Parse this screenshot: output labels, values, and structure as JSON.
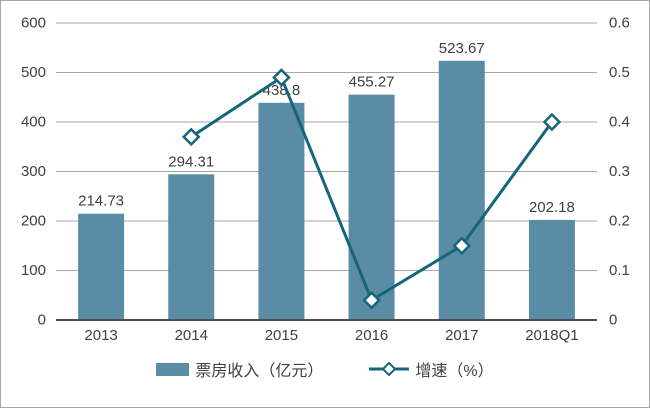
{
  "chart_data": {
    "type": "bar+line",
    "title": "",
    "categories": [
      "2013",
      "2014",
      "2015",
      "2016",
      "2017",
      "2018Q1"
    ],
    "series": [
      {
        "name": "票房收入（亿元）",
        "type": "bar",
        "axis": "left",
        "values": [
          214.73,
          294.31,
          438.8,
          455.27,
          523.67,
          202.18
        ],
        "data_labels": [
          "214.73",
          "294.31",
          "438.8",
          "455.27",
          "523.67",
          "202.18"
        ]
      },
      {
        "name": "增速（%）",
        "type": "line",
        "axis": "right",
        "marker": "diamond",
        "values": [
          null,
          0.37,
          0.49,
          0.04,
          0.15,
          0.4
        ]
      }
    ],
    "left_axis": {
      "min": 0,
      "max": 600,
      "step": 100,
      "tick_labels": [
        "0",
        "100",
        "200",
        "300",
        "400",
        "500",
        "600"
      ]
    },
    "right_axis": {
      "min": 0,
      "max": 0.6,
      "step": 0.1,
      "tick_labels": [
        "0",
        "0.1",
        "0.2",
        "0.3",
        "0.4",
        "0.5",
        "0.6"
      ]
    },
    "grid": true,
    "legend_position": "bottom",
    "colors": {
      "bar": "#5b8ca6",
      "line": "#156679",
      "marker_fill": "#ffffff",
      "grid": "#a6a6a6",
      "axis_line": "#4d4d4d",
      "text": "#404040"
    }
  }
}
